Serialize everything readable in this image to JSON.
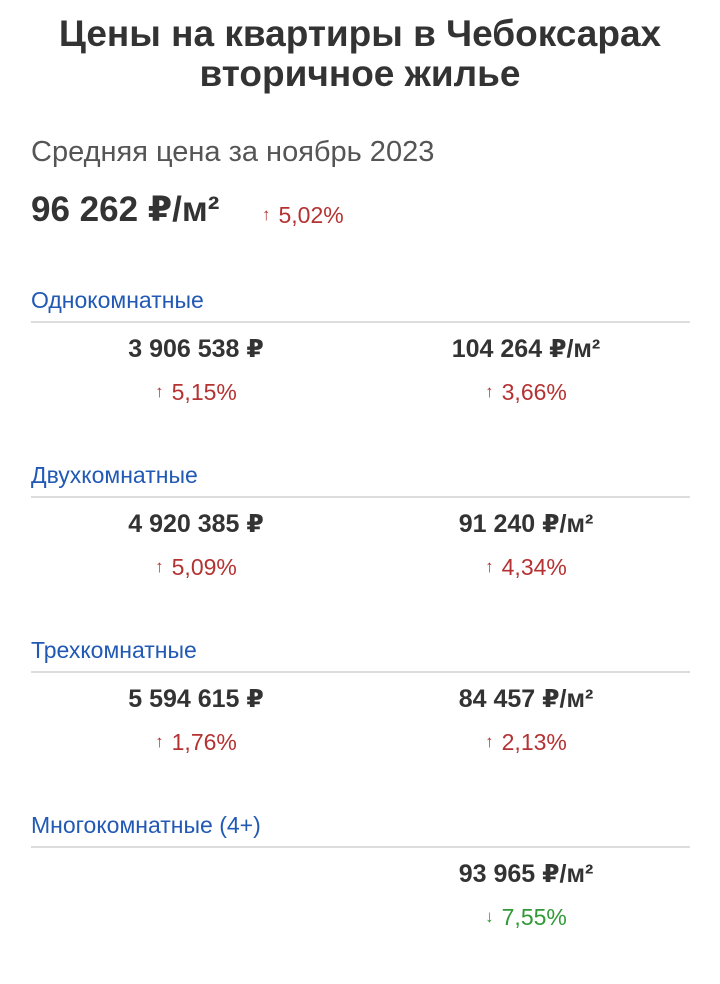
{
  "header": {
    "title_line1": "Цены на квартиры в Чебоксарах",
    "title_line2": "вторичное жилье"
  },
  "summary": {
    "subtitle": "Средняя цена за ноябрь 2023",
    "avg_price": "96 262 ₽/м²",
    "change": "5,02%",
    "direction": "up",
    "arrow": "↑"
  },
  "colors": {
    "up": "#b53232",
    "down": "#2f9a36",
    "section_label": "#2159b5"
  },
  "sections": [
    {
      "label": "Однокомнатные",
      "price": "3 906 538 ₽",
      "price_change": "5,15%",
      "price_arrow": "↑",
      "sqm": "104 264 ₽/м²",
      "sqm_change": "3,66%",
      "sqm_arrow": "↑"
    },
    {
      "label": "Двухкомнатные",
      "price": "4 920 385 ₽",
      "price_change": "5,09%",
      "price_arrow": "↑",
      "sqm": "91 240 ₽/м²",
      "sqm_change": "4,34%",
      "sqm_arrow": "↑"
    },
    {
      "label": "Трехкомнатные",
      "price": "5 594 615 ₽",
      "price_change": "1,76%",
      "price_arrow": "↑",
      "sqm": "84 457 ₽/м²",
      "sqm_change": "2,13%",
      "sqm_arrow": "↑"
    },
    {
      "label": "Многокомнатные (4+)",
      "sqm": "93 965 ₽/м²",
      "sqm_change": "7,55%",
      "sqm_arrow": "↓",
      "sqm_direction": "down"
    }
  ]
}
